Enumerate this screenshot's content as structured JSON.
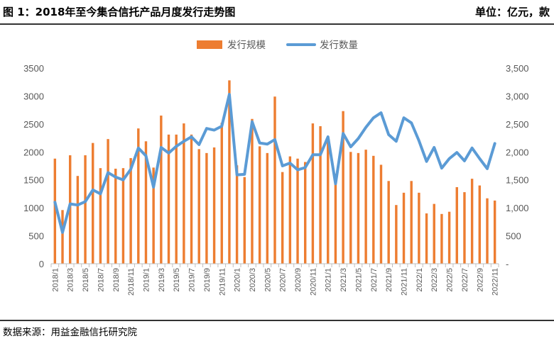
{
  "header": {
    "title": "图 1：2018年至今集合信托产品月度发行走势图",
    "unit": "单位：亿元，款"
  },
  "footer": {
    "source": "数据来源：用益金融信托研究院"
  },
  "colors": {
    "bar": "#ED7D31",
    "line": "#5B9BD5",
    "axis": "#BFBFBF",
    "text": "#595959"
  },
  "chart_data": {
    "type": "bar",
    "title": "",
    "categories": [
      "2018/1",
      "2018/2",
      "2018/3",
      "2018/4",
      "2018/5",
      "2018/6",
      "2018/7",
      "2018/8",
      "2018/9",
      "2018/10",
      "2018/11",
      "2018/12",
      "2019/1",
      "2019/2",
      "2019/3",
      "2019/4",
      "2019/5",
      "2019/6",
      "2019/7",
      "2019/8",
      "2019/9",
      "2019/10",
      "2019/11",
      "2019/12",
      "2020/1",
      "2020/2",
      "2020/3",
      "2020/4",
      "2020/5",
      "2020/6",
      "2020/7",
      "2020/8",
      "2020/9",
      "2020/10",
      "2020/11",
      "2020/12",
      "2021/1",
      "2021/2",
      "2021/3",
      "2021/4",
      "2021/5",
      "2021/6",
      "2021/7",
      "2021/8",
      "2021/9",
      "2021/10",
      "2021/11",
      "2021/12",
      "2022/1",
      "2022/2",
      "2022/3",
      "2022/4",
      "2022/5",
      "2022/6",
      "2022/7",
      "2022/8",
      "2022/9",
      "2022/10",
      "2022/11"
    ],
    "x_tick_labels": [
      "2018/1",
      "2018/3",
      "2018/5",
      "2018/7",
      "2018/9",
      "2018/11",
      "2019/1",
      "2019/3",
      "2019/5",
      "2019/7",
      "2019/9",
      "2019/11",
      "2020/1",
      "2020/3",
      "2020/5",
      "2020/7",
      "2020/9",
      "2020/11",
      "2021/1",
      "2021/3",
      "2021/5",
      "2021/7",
      "2021/9",
      "2021/11",
      "2022/1",
      "2022/3",
      "2022/5",
      "2022/7",
      "2022/9",
      "2022/11"
    ],
    "series": [
      {
        "name": "发行规模",
        "type": "bar",
        "axis": "left",
        "values": [
          1880,
          960,
          1940,
          1570,
          1940,
          2160,
          1710,
          2230,
          1700,
          1710,
          1890,
          2420,
          2190,
          1720,
          2650,
          2310,
          2310,
          2510,
          2310,
          2050,
          1980,
          2080,
          2520,
          3280,
          1760,
          1550,
          2590,
          2100,
          1980,
          2990,
          1640,
          1920,
          1880,
          1820,
          2510,
          2460,
          2250,
          1610,
          2730,
          2000,
          1980,
          2040,
          1930,
          1770,
          1480,
          1050,
          1270,
          1480,
          1270,
          900,
          1070,
          890,
          930,
          1370,
          1280,
          1520,
          1400,
          1170,
          1130
        ]
      },
      {
        "name": "发行数量",
        "type": "line",
        "axis": "right",
        "values": [
          1100,
          560,
          1070,
          1050,
          1110,
          1320,
          1250,
          1630,
          1550,
          1500,
          1690,
          2070,
          1930,
          1370,
          2080,
          1980,
          2100,
          2190,
          2270,
          2130,
          2420,
          2390,
          2460,
          3030,
          1590,
          1600,
          2540,
          2160,
          2140,
          2220,
          1750,
          1800,
          1680,
          1720,
          1950,
          1950,
          2270,
          1430,
          2330,
          2090,
          2240,
          2440,
          2610,
          2700,
          2310,
          2190,
          2610,
          2520,
          2200,
          1830,
          2080,
          1710,
          1880,
          1990,
          1840,
          2070,
          1880,
          1700,
          2150
        ]
      }
    ],
    "y_left": {
      "range": [
        0,
        3500
      ],
      "ticks": [
        "0",
        "500",
        "1000",
        "1500",
        "2000",
        "2500",
        "3000",
        "3500"
      ]
    },
    "y_right": {
      "range": [
        0,
        3500
      ],
      "ticks": [
        "-",
        "500",
        "1,000",
        "1,500",
        "2,000",
        "2,500",
        "3,000",
        "3,500"
      ]
    },
    "legend": {
      "position": "top",
      "bar_label": "发行规模",
      "line_label": "发行数量"
    },
    "grid": false
  }
}
